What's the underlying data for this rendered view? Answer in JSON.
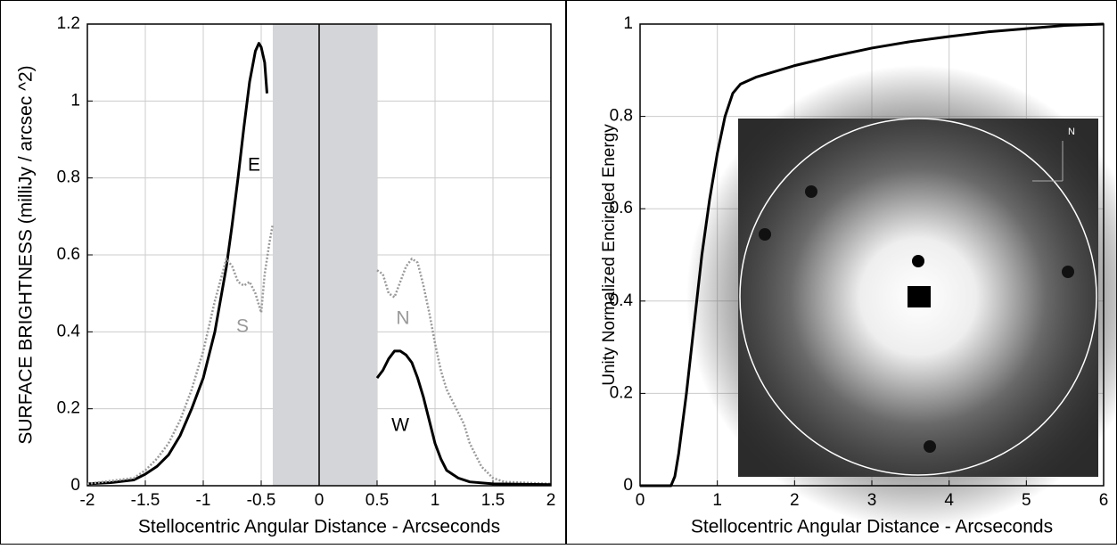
{
  "chart_data": [
    {
      "type": "line",
      "xlabel": "Stellocentric Angular Distance - Arcseconds",
      "ylabel": "SURFACE BRIGHTNESS (milliJy / arcsec ^2)",
      "xlim": [
        -2,
        2
      ],
      "ylim": [
        0,
        1.2
      ],
      "xticks": [
        -2,
        -1.5,
        -1,
        -0.5,
        0,
        0.5,
        1,
        1.5,
        2
      ],
      "yticks": [
        0,
        0.2,
        0.4,
        0.6,
        0.8,
        1,
        1.2
      ],
      "grid": true,
      "shaded_region": [
        -0.4,
        0.5
      ],
      "zero_line": 0,
      "series": [
        {
          "name": "E",
          "color": "#000000",
          "dashed": false,
          "x": [
            -2,
            -1.8,
            -1.6,
            -1.5,
            -1.4,
            -1.3,
            -1.2,
            -1.1,
            -1.0,
            -0.9,
            -0.8,
            -0.75,
            -0.7,
            -0.65,
            -0.6,
            -0.55,
            -0.52,
            -0.5,
            -0.47,
            -0.45
          ],
          "values": [
            0.005,
            0.008,
            0.015,
            0.03,
            0.05,
            0.08,
            0.13,
            0.2,
            0.28,
            0.4,
            0.57,
            0.68,
            0.8,
            0.93,
            1.05,
            1.13,
            1.15,
            1.14,
            1.1,
            1.02
          ]
        },
        {
          "name": "S",
          "color": "#999999",
          "dashed": true,
          "x": [
            -2,
            -1.6,
            -1.5,
            -1.4,
            -1.3,
            -1.2,
            -1.1,
            -1.0,
            -0.9,
            -0.8,
            -0.75,
            -0.7,
            -0.65,
            -0.6,
            -0.55,
            -0.5,
            -0.47,
            -0.43,
            -0.4
          ],
          "values": [
            0.005,
            0.02,
            0.04,
            0.07,
            0.11,
            0.17,
            0.25,
            0.35,
            0.48,
            0.59,
            0.57,
            0.53,
            0.52,
            0.53,
            0.5,
            0.45,
            0.55,
            0.63,
            0.68
          ]
        },
        {
          "name": "N",
          "color": "#999999",
          "dashed": true,
          "x": [
            0.5,
            0.55,
            0.6,
            0.65,
            0.7,
            0.75,
            0.8,
            0.85,
            0.9,
            0.95,
            1.0,
            1.05,
            1.1,
            1.2,
            1.25,
            1.3,
            1.4,
            1.5,
            1.6,
            2
          ],
          "values": [
            0.56,
            0.55,
            0.5,
            0.49,
            0.53,
            0.57,
            0.59,
            0.58,
            0.52,
            0.45,
            0.37,
            0.3,
            0.25,
            0.19,
            0.16,
            0.11,
            0.05,
            0.02,
            0.01,
            0.005
          ]
        },
        {
          "name": "W",
          "color": "#000000",
          "dashed": false,
          "x": [
            0.5,
            0.55,
            0.6,
            0.65,
            0.7,
            0.75,
            0.8,
            0.85,
            0.9,
            0.95,
            1.0,
            1.05,
            1.1,
            1.2,
            1.3,
            1.5,
            2
          ],
          "values": [
            0.28,
            0.3,
            0.33,
            0.35,
            0.35,
            0.34,
            0.32,
            0.28,
            0.23,
            0.17,
            0.11,
            0.07,
            0.04,
            0.02,
            0.01,
            0.005,
            0.003
          ]
        }
      ]
    },
    {
      "type": "line",
      "xlabel": "Stellocentric Angular Distance - Arcseconds",
      "ylabel": "Unity Normalized Encircled Energy",
      "xlim": [
        0,
        6
      ],
      "ylim": [
        0,
        1
      ],
      "xticks": [
        0,
        1,
        2,
        3,
        4,
        5,
        6
      ],
      "yticks": [
        0,
        0.2,
        0.4,
        0.6,
        0.8,
        1
      ],
      "grid": true,
      "inset_label": "N",
      "series": [
        {
          "color": "#000000",
          "dashed": false,
          "x": [
            0,
            0.4,
            0.45,
            0.5,
            0.6,
            0.7,
            0.8,
            0.9,
            1.0,
            1.1,
            1.2,
            1.3,
            1.5,
            2,
            2.5,
            3,
            3.5,
            4,
            4.5,
            5,
            5.5,
            6
          ],
          "values": [
            0,
            0,
            0.02,
            0.07,
            0.2,
            0.35,
            0.5,
            0.62,
            0.72,
            0.8,
            0.85,
            0.87,
            0.885,
            0.91,
            0.93,
            0.948,
            0.962,
            0.973,
            0.983,
            0.99,
            0.997,
            1
          ]
        }
      ]
    }
  ]
}
